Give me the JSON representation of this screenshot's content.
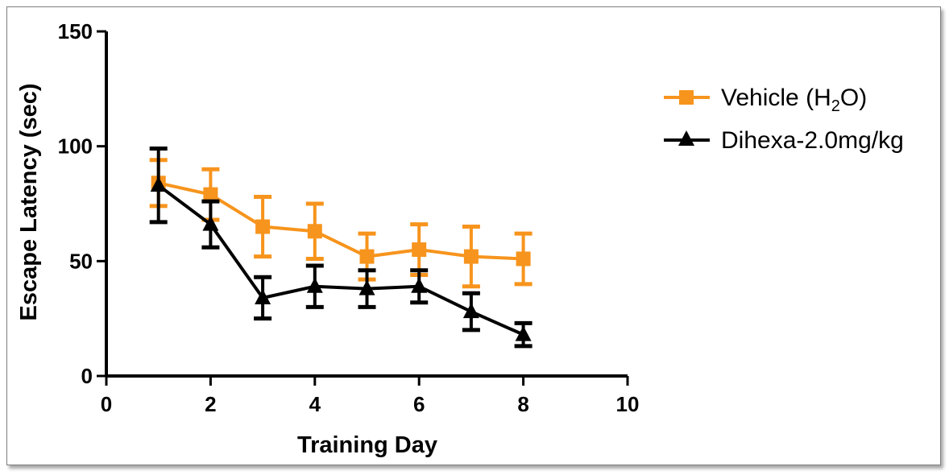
{
  "chart_data": {
    "type": "line",
    "title": "",
    "xlabel": "Training Day",
    "ylabel": "Escape Latency (sec)",
    "xlim": [
      0,
      10
    ],
    "ylim": [
      0,
      150
    ],
    "xticks": [
      0,
      2,
      4,
      6,
      8,
      10
    ],
    "yticks": [
      0,
      50,
      100,
      150
    ],
    "grid": false,
    "legend_position": "right",
    "series": [
      {
        "name": "Vehicle (H2O)",
        "legend_label": {
          "before": "Vehicle (H",
          "sub": "2",
          "after": "O)"
        },
        "color": "#f7941d",
        "marker": "square",
        "x": [
          1,
          2,
          3,
          4,
          5,
          6,
          7,
          8
        ],
        "y": [
          84,
          79,
          65,
          63,
          52,
          55,
          52,
          51
        ],
        "err": [
          10,
          11,
          13,
          12,
          10,
          11,
          13,
          11
        ]
      },
      {
        "name": "Dihexa-2.0mg/kg",
        "color": "#000000",
        "marker": "triangle",
        "x": [
          1,
          2,
          3,
          4,
          5,
          6,
          7,
          8
        ],
        "y": [
          83,
          66,
          34,
          39,
          38,
          39,
          28,
          18
        ],
        "err": [
          16,
          10,
          9,
          9,
          8,
          7,
          8,
          5
        ]
      }
    ]
  }
}
